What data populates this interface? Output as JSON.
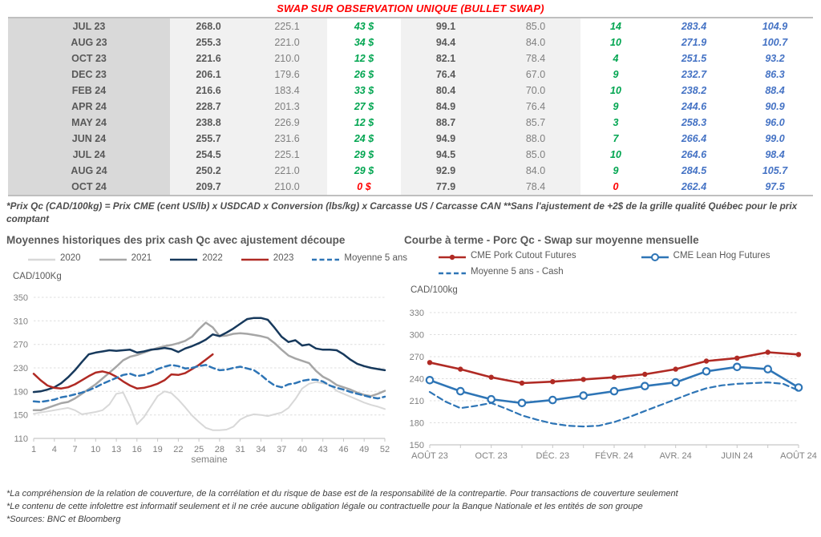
{
  "page_title": "SWAP SUR OBSERVATION UNIQUE (BULLET SWAP)",
  "colors": {
    "title_red": "#ff0000",
    "gain_green": "#00a550",
    "gain_red": "#ff0000",
    "curve_blue": "#4472c4",
    "text_gray": "#595959",
    "month_bg": "#d9d9d9",
    "cell_bg": "#f1f1f1"
  },
  "table": {
    "rows": [
      {
        "month": "JUL 23",
        "values": [
          "268.0",
          "225.1",
          "43 $",
          "99.1",
          "85.0",
          "14",
          "283.4",
          "104.9"
        ],
        "accent": "green"
      },
      {
        "month": "AUG 23",
        "values": [
          "255.3",
          "221.0",
          "34 $",
          "94.4",
          "84.0",
          "10",
          "271.9",
          "100.7"
        ],
        "accent": "green"
      },
      {
        "month": "OCT 23",
        "values": [
          "221.6",
          "210.0",
          "12 $",
          "82.1",
          "78.4",
          "4",
          "251.5",
          "93.2"
        ],
        "accent": "green"
      },
      {
        "month": "DEC 23",
        "values": [
          "206.1",
          "179.6",
          "26 $",
          "76.4",
          "67.0",
          "9",
          "232.7",
          "86.3"
        ],
        "accent": "green"
      },
      {
        "month": "FEB 24",
        "values": [
          "216.6",
          "183.4",
          "33 $",
          "80.4",
          "70.0",
          "10",
          "238.2",
          "88.4"
        ],
        "accent": "green"
      },
      {
        "month": "APR 24",
        "values": [
          "228.7",
          "201.3",
          "27 $",
          "84.9",
          "76.4",
          "9",
          "244.6",
          "90.9"
        ],
        "accent": "green"
      },
      {
        "month": "MAY 24",
        "values": [
          "238.8",
          "226.9",
          "12 $",
          "88.7",
          "85.7",
          "3",
          "258.3",
          "96.0"
        ],
        "accent": "green"
      },
      {
        "month": "JUN 24",
        "values": [
          "255.7",
          "231.6",
          "24 $",
          "94.9",
          "88.0",
          "7",
          "266.4",
          "99.0"
        ],
        "accent": "green"
      },
      {
        "month": "JUL 24",
        "values": [
          "254.5",
          "225.1",
          "29 $",
          "94.5",
          "85.0",
          "10",
          "264.6",
          "98.4"
        ],
        "accent": "green"
      },
      {
        "month": "AUG 24",
        "values": [
          "250.2",
          "221.0",
          "29 $",
          "92.9",
          "84.0",
          "9",
          "284.5",
          "105.7"
        ],
        "accent": "green"
      },
      {
        "month": "OCT 24",
        "values": [
          "209.7",
          "210.0",
          "0 $",
          "77.9",
          "78.4",
          "0",
          "262.4",
          "97.5"
        ],
        "accent": "red"
      }
    ],
    "footnote": "*Prix Qc (CAD/100kg) = Prix CME (cent US/lb) x USDCAD x Conversion (lbs/kg) x Carcasse US / Carcasse CAN **Sans l'ajustement de +2$ de la grille qualité Québec pour le prix comptant"
  },
  "chart_data": [
    {
      "id": "hist",
      "type": "line",
      "title": "Moyennes historiques des prix cash Qc avec ajustement découpe",
      "y_axis_label": "CAD/100Kg",
      "xlabel": "semaine",
      "ylim": [
        110,
        350
      ],
      "y_ticks": [
        110,
        150,
        190,
        230,
        270,
        310,
        350
      ],
      "x_ticks": [
        1,
        4,
        7,
        10,
        13,
        16,
        19,
        22,
        25,
        28,
        31,
        34,
        37,
        40,
        43,
        46,
        49,
        52
      ],
      "xlim": [
        1,
        52
      ],
      "grid": "dashed-horizontal",
      "legend_position": "top",
      "series": [
        {
          "name": "2020",
          "color": "#d8d8d8",
          "style": "solid",
          "width": 2,
          "x_start": 1,
          "values": [
            152,
            154,
            156,
            158,
            160,
            162,
            158,
            151,
            153,
            155,
            158,
            168,
            186,
            188,
            164,
            134,
            146,
            164,
            182,
            190,
            187,
            176,
            163,
            149,
            138,
            128,
            124,
            124,
            125,
            130,
            142,
            148,
            151,
            150,
            148,
            151,
            154,
            162,
            177,
            195,
            203,
            206,
            204,
            201,
            191,
            186,
            181,
            176,
            171,
            167,
            164,
            160
          ]
        },
        {
          "name": "2021",
          "color": "#a6a6a6",
          "style": "solid",
          "width": 2.5,
          "x_start": 1,
          "values": [
            158,
            158,
            162,
            166,
            170,
            172,
            178,
            186,
            194,
            202,
            212,
            222,
            232,
            243,
            249,
            252,
            256,
            260,
            264,
            267,
            269,
            272,
            276,
            283,
            296,
            307,
            299,
            284,
            285,
            288,
            289,
            288,
            286,
            284,
            281,
            272,
            261,
            251,
            246,
            242,
            238,
            225,
            215,
            209,
            201,
            197,
            193,
            188,
            184,
            182,
            186,
            191
          ]
        },
        {
          "name": "2022",
          "color": "#17395c",
          "style": "solid",
          "width": 2.5,
          "x_start": 1,
          "values": [
            189,
            190,
            193,
            197,
            204,
            214,
            226,
            240,
            253,
            256,
            258,
            260,
            259,
            260,
            261,
            256,
            258,
            261,
            262,
            264,
            262,
            257,
            263,
            267,
            272,
            278,
            287,
            284,
            290,
            297,
            305,
            313,
            315,
            315,
            312,
            298,
            283,
            274,
            277,
            268,
            270,
            263,
            261,
            261,
            260,
            253,
            244,
            237,
            233,
            230,
            228,
            226
          ]
        },
        {
          "name": "2023",
          "color": "#b02a24",
          "style": "solid",
          "width": 2.5,
          "x_start": 1,
          "values": [
            220,
            209,
            200,
            196,
            195,
            197,
            202,
            209,
            216,
            222,
            224,
            221,
            215,
            207,
            200,
            195,
            196,
            199,
            203,
            209,
            219,
            218,
            221,
            228,
            235,
            244,
            253
          ]
        },
        {
          "name": "Moyenne 5 ans",
          "color": "#2e75b6",
          "style": "dashed",
          "width": 2.5,
          "x_start": 1,
          "values": [
            173,
            172,
            174,
            176,
            180,
            182,
            185,
            188,
            192,
            197,
            203,
            208,
            213,
            218,
            220,
            216,
            218,
            222,
            228,
            232,
            235,
            233,
            229,
            230,
            233,
            235,
            230,
            226,
            227,
            230,
            232,
            229,
            226,
            218,
            208,
            200,
            197,
            202,
            204,
            208,
            210,
            210,
            207,
            200,
            196,
            193,
            189,
            186,
            183,
            180,
            178,
            181
          ]
        }
      ]
    },
    {
      "id": "fwd",
      "type": "line",
      "title": "Courbe à terme - Porc Qc - Swap sur moyenne mensuelle",
      "y_axis_label": "CAD/100kg",
      "ylim": [
        150,
        330
      ],
      "y_ticks": [
        150,
        180,
        210,
        240,
        270,
        300,
        330
      ],
      "x_categories": [
        "AOÛT 23",
        "OCT. 23",
        "DÉC. 23",
        "FÉVR. 24",
        "AVR. 24",
        "JUIN 24",
        "AOÛT 24"
      ],
      "grid": "dashed-horizontal",
      "legend_position": "top",
      "series": [
        {
          "name": "CME Pork Cutout Futures",
          "color": "#b02a24",
          "style": "solid",
          "width": 2.6,
          "marker": "filled",
          "x": [
            0,
            1,
            2,
            3,
            4,
            5,
            6,
            7,
            8,
            9,
            10,
            11,
            12
          ],
          "values": [
            262,
            253,
            242,
            234,
            236,
            239,
            242,
            246,
            253,
            264,
            268,
            276,
            273
          ]
        },
        {
          "name": "CME Lean Hog Futures",
          "color": "#2e75b6",
          "style": "solid",
          "width": 2.6,
          "marker": "open",
          "x": [
            0,
            1,
            2,
            3,
            4,
            5,
            6,
            7,
            8,
            9,
            10,
            11,
            12
          ],
          "values": [
            238,
            223,
            212,
            207,
            211,
            217,
            223,
            230,
            235,
            250,
            256,
            253,
            228
          ]
        },
        {
          "name": "Moyenne 5 ans - Cash",
          "color": "#2e75b6",
          "style": "dashed",
          "width": 2.2,
          "x": [
            0,
            0.5,
            1,
            1.5,
            2,
            2.5,
            3,
            3.5,
            4,
            4.5,
            5,
            5.5,
            6,
            6.5,
            7,
            7.5,
            8,
            8.5,
            9,
            9.5,
            10,
            10.5,
            11,
            11.5,
            12
          ],
          "values": [
            222,
            209,
            200,
            203,
            207,
            199,
            190,
            184,
            179,
            176,
            175,
            176,
            181,
            188,
            196,
            204,
            212,
            220,
            227,
            231,
            233,
            234,
            235,
            233,
            224
          ]
        }
      ]
    }
  ],
  "footer": [
    "*La compréhension de la relation de couverture, de la corrélation et du risque de base est de la responsabilité de la contrepartie. Pour transactions de couverture seulement",
    "*Le contenu de cette infolettre est informatif seulement et il ne crée aucune obligation légale ou contractuelle pour la Banque Nationale et les entités de son groupe",
    "*Sources: BNC et Bloomberg"
  ]
}
